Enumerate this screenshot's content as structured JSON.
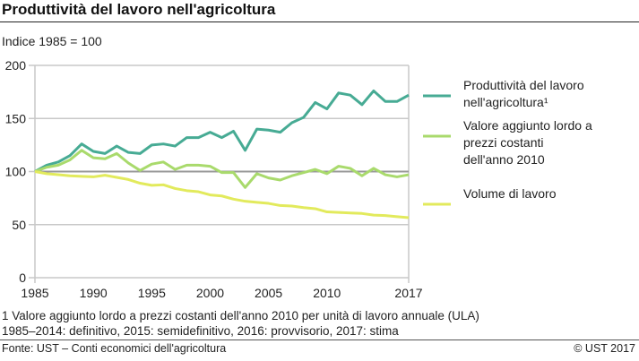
{
  "title": "Produttività del lavoro nell'agricoltura",
  "footnote1": "1   Valore aggiunto lordo a prezzi costanti dell'anno 2010 per unità di lavoro annuale (ULA)",
  "footnote2": "1985–2014: definitivo, 2015: semidefinitivo, 2016: provvisorio, 2017: stima",
  "source": "Fonte: UST – Conti economici dell'agricoltura",
  "copyright": "© UST  2017",
  "chart_data": {
    "type": "line",
    "ylabel": "Indice 1985 = 100",
    "ylim": [
      0,
      200
    ],
    "yticks": [
      0,
      50,
      100,
      150,
      200
    ],
    "xlim": [
      1985,
      2017
    ],
    "xticks": [
      "1985",
      "1990",
      "1995",
      "2000",
      "2005",
      "2010",
      "2017"
    ],
    "grid": true,
    "reference_line": 100,
    "legend_position": "right",
    "x": [
      1985,
      1986,
      1987,
      1988,
      1989,
      1990,
      1991,
      1992,
      1993,
      1994,
      1995,
      1996,
      1997,
      1998,
      1999,
      2000,
      2001,
      2002,
      2003,
      2004,
      2005,
      2006,
      2007,
      2008,
      2009,
      2010,
      2011,
      2012,
      2013,
      2014,
      2015,
      2016,
      2017
    ],
    "series": [
      {
        "name": "Produttività del lavoro nell'agricoltura¹",
        "color": "#47ab94",
        "values": [
          100,
          106,
          109,
          115,
          126,
          119,
          117,
          124,
          118,
          117,
          125,
          126,
          124,
          132,
          132,
          137,
          132,
          138,
          120,
          140,
          139,
          137,
          146,
          151,
          165,
          159,
          174,
          172,
          163,
          176,
          166,
          166,
          172
        ]
      },
      {
        "name": "Valore aggiunto lordo a prezzi costanti dell'anno 2010",
        "color": "#a9da6c",
        "values": [
          100,
          104,
          106,
          111,
          120,
          113,
          112,
          117,
          108,
          101,
          107,
          109,
          102,
          106,
          106,
          105,
          99,
          99,
          85,
          98,
          94,
          92,
          96,
          99,
          102,
          98,
          105,
          103,
          96,
          103,
          97,
          95,
          97
        ]
      },
      {
        "name": "Volume di lavoro",
        "color": "#e2ea5c",
        "values": [
          100,
          98,
          97,
          96,
          95.5,
          95,
          96.5,
          94.5,
          92.5,
          89,
          87,
          87.5,
          84,
          82,
          81,
          78,
          77,
          74,
          72,
          71,
          70,
          68,
          67.5,
          66,
          65,
          62,
          61.5,
          61,
          60.5,
          59,
          58.5,
          57.5,
          56.5
        ]
      }
    ]
  }
}
